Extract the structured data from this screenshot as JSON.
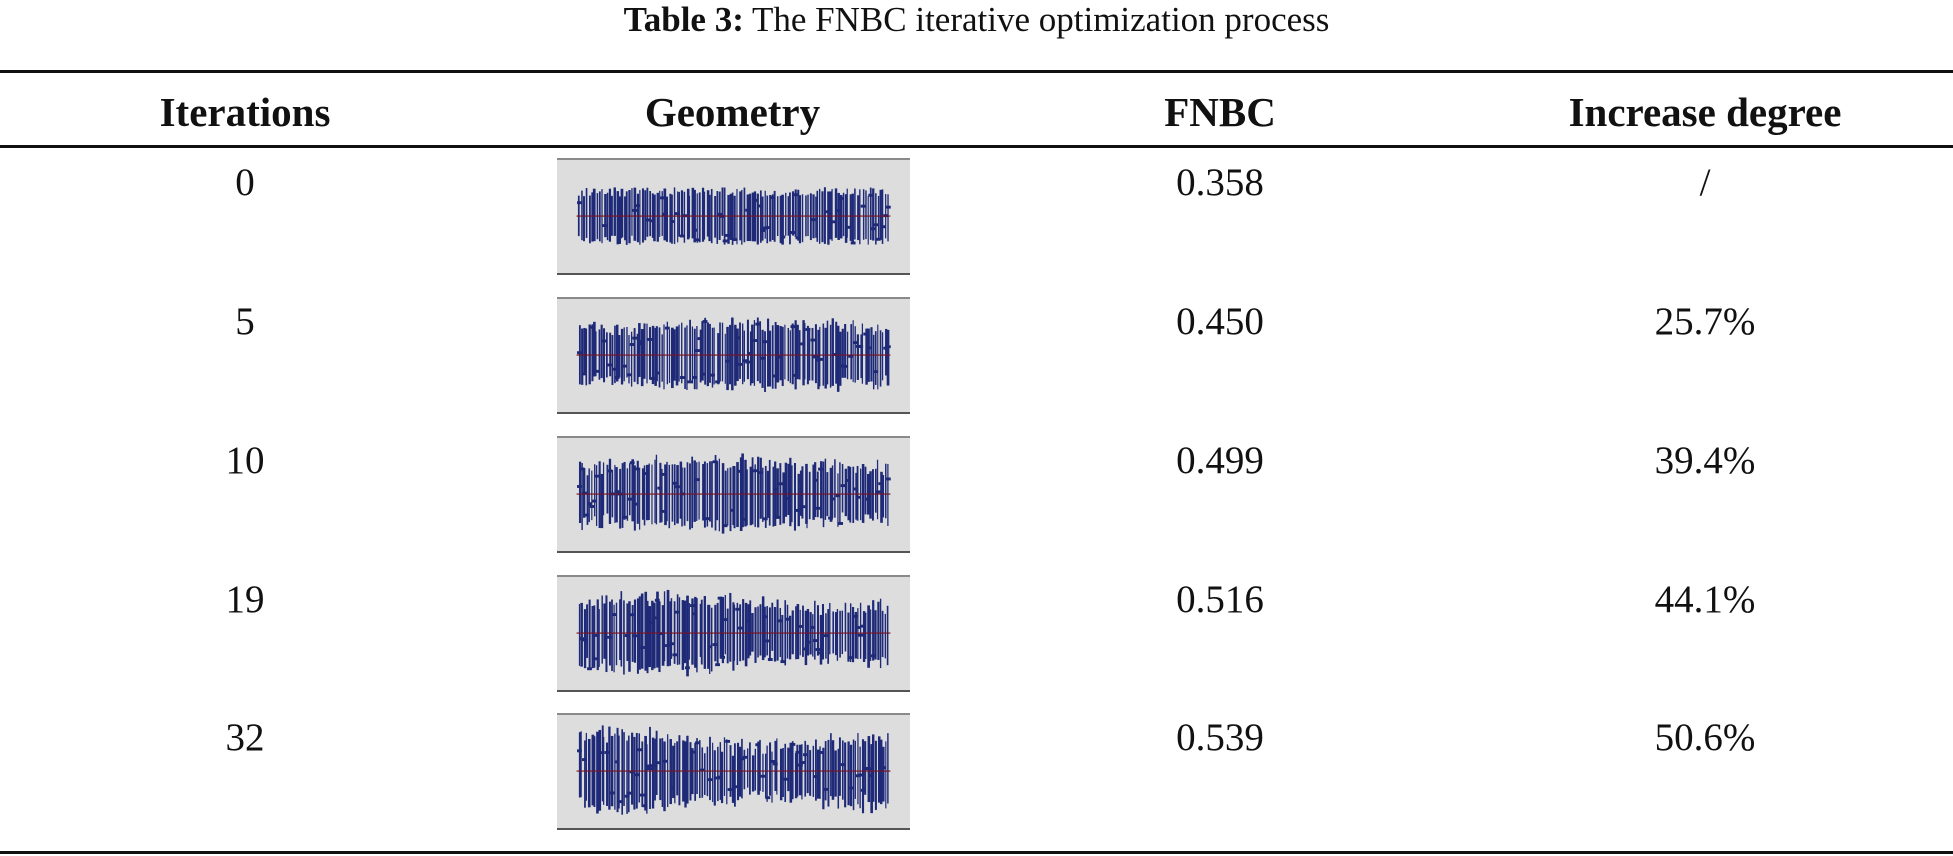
{
  "caption": {
    "label": "Table 3:",
    "text": "The FNBC iterative optimization process"
  },
  "headers": {
    "iterations": "Iterations",
    "geometry": "Geometry",
    "fnbc": "FNBC",
    "increase": "Increase degree"
  },
  "rows": [
    {
      "iterations": "0",
      "fnbc": "0.358",
      "increase": "/"
    },
    {
      "iterations": "5",
      "fnbc": "0.450",
      "increase": "25.7%"
    },
    {
      "iterations": "10",
      "fnbc": "0.499",
      "increase": "39.4%"
    },
    {
      "iterations": "19",
      "fnbc": "0.516",
      "increase": "44.1%"
    },
    {
      "iterations": "32",
      "fnbc": "0.539",
      "increase": "50.6%"
    }
  ],
  "colors": {
    "geometry_fill": "#1e2a78",
    "geometry_bg": "#dddddd",
    "axis_line": "#7a1020"
  }
}
